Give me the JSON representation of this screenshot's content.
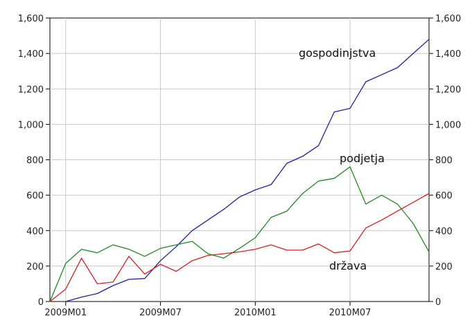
{
  "chart_data": {
    "type": "line",
    "x": [
      "2008M12",
      "2009M01",
      "2009M02",
      "2009M03",
      "2009M04",
      "2009M05",
      "2009M06",
      "2009M07",
      "2009M08",
      "2009M09",
      "2009M10",
      "2009M11",
      "2009M12",
      "2010M01",
      "2010M02",
      "2010M03",
      "2010M04",
      "2010M05",
      "2010M06",
      "2010M07",
      "2010M08",
      "2010M09",
      "2010M10",
      "2010M11",
      "2010M12"
    ],
    "x_tick_labels": [
      "2009M01",
      "2009M07",
      "2010M01",
      "2010M07"
    ],
    "x_ticks_at": [
      "2009M01",
      "2009M07",
      "2010M01",
      "2010M07"
    ],
    "ylim": [
      0,
      1600
    ],
    "yticks": [
      0,
      200,
      400,
      600,
      800,
      1000,
      1200,
      1400,
      1600
    ],
    "ytick_labels": [
      "0",
      "200",
      "400",
      "600",
      "800",
      "1,000",
      "1,200",
      "1,400",
      "1,600"
    ],
    "grid": true,
    "series": [
      {
        "name": "gospodinjstva",
        "color": "#1f1f9f",
        "values": [
          null,
          0,
          25,
          45,
          90,
          125,
          130,
          230,
          310,
          400,
          460,
          520,
          590,
          630,
          660,
          780,
          820,
          880,
          1070,
          1090,
          1240,
          1280,
          1320,
          1400,
          1480
        ]
      },
      {
        "name": "podjetja",
        "color": "#1f8a1f",
        "values": [
          0,
          215,
          295,
          275,
          320,
          295,
          255,
          300,
          320,
          340,
          270,
          245,
          300,
          360,
          475,
          510,
          610,
          680,
          695,
          760,
          550,
          600,
          550,
          440,
          280
        ]
      },
      {
        "name": "država",
        "color": "#d42020",
        "values": [
          0,
          70,
          245,
          100,
          110,
          255,
          155,
          210,
          170,
          230,
          260,
          270,
          280,
          295,
          320,
          290,
          290,
          325,
          275,
          285,
          415,
          460,
          510,
          560,
          610
        ]
      }
    ]
  }
}
